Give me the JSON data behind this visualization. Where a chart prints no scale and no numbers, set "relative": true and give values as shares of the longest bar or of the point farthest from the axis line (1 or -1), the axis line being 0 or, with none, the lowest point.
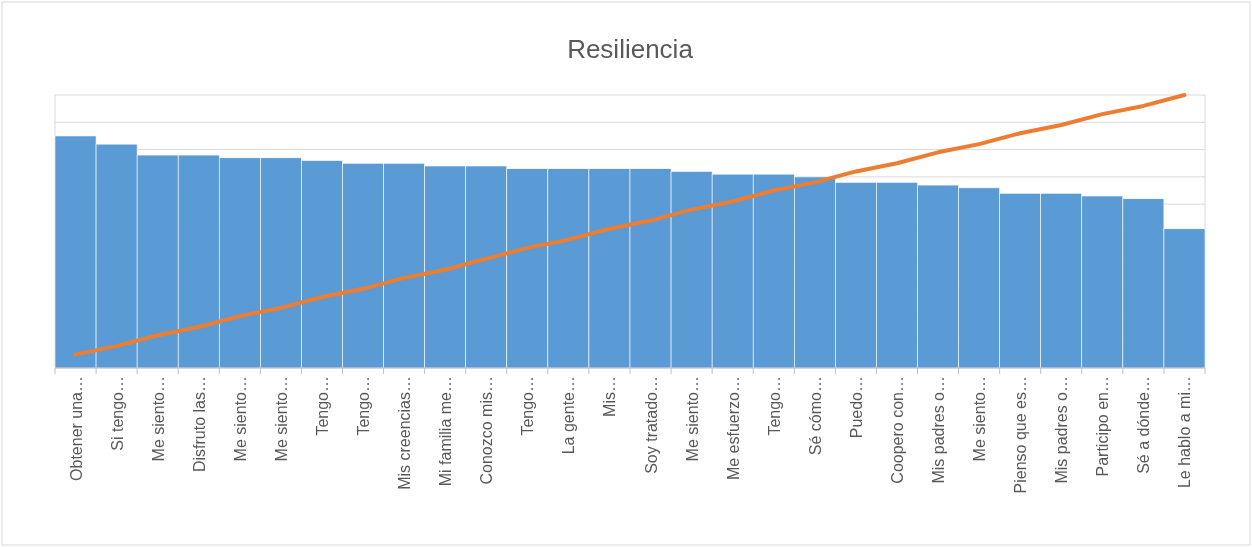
{
  "chart_data": {
    "type": "bar",
    "title": "Resiliencia",
    "relative": true,
    "grid": "y",
    "categories": [
      "Obtener una…",
      "Si tengo…",
      "Me siento…",
      "Disfruto las…",
      "Me siento…",
      "Me siento…",
      "Tengo…",
      "Tengo…",
      "Mis creencias…",
      "Mi familia me…",
      "Conozco mis…",
      "Tengo…",
      "La gente…",
      "Mis…",
      "Soy tratado…",
      "Me siento…",
      "Me esfuerzo…",
      "Tengo…",
      "Sé cómo…",
      "Puedo…",
      "Coopero con…",
      "Mis padres o…",
      "Me siento…",
      "Pienso que es…",
      "Mis padres o…",
      "Participo en…",
      "Sé a dónde…",
      "Le hablo a mi…"
    ],
    "series": [
      {
        "color": "#5b9bd5",
        "values": [
          0.85,
          0.82,
          0.78,
          0.78,
          0.77,
          0.77,
          0.76,
          0.75,
          0.75,
          0.74,
          0.74,
          0.73,
          0.73,
          0.73,
          0.73,
          0.72,
          0.71,
          0.71,
          0.7,
          0.68,
          0.68,
          0.67,
          0.66,
          0.64,
          0.64,
          0.63,
          0.62,
          0.51
        ]
      },
      {
        "type": "line",
        "color": "#ed7d31",
        "values": [
          0.05,
          0.08,
          0.12,
          0.15,
          0.19,
          0.22,
          0.26,
          0.29,
          0.33,
          0.36,
          0.4,
          0.44,
          0.47,
          0.51,
          0.54,
          0.58,
          0.61,
          0.65,
          0.68,
          0.72,
          0.75,
          0.79,
          0.82,
          0.86,
          0.89,
          0.93,
          0.96,
          1.0
        ]
      }
    ]
  }
}
